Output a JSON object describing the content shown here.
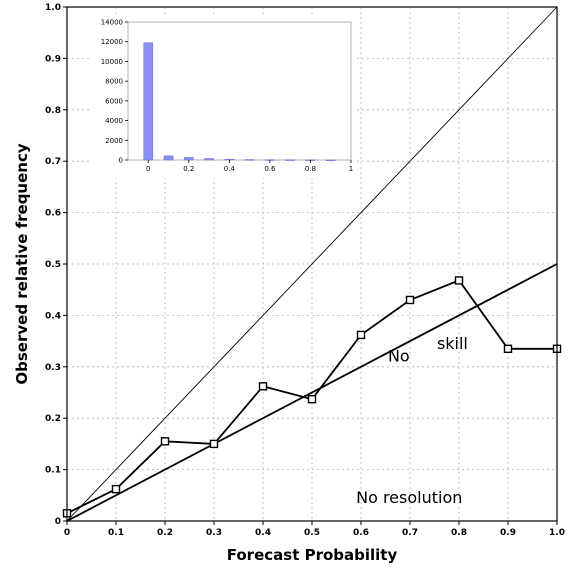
{
  "chart_data": [
    {
      "type": "line",
      "title": "",
      "xlabel": "Forecast Probability",
      "ylabel": "Observed relative frequency",
      "xlim": [
        0,
        1
      ],
      "ylim": [
        0,
        1
      ],
      "grid": true,
      "x_ticks": [
        "0",
        "0.1",
        "0.2",
        "0.3",
        "0.4",
        "0.5",
        "0.6",
        "0.7",
        "0.8",
        "0.9",
        "1.0"
      ],
      "y_ticks": [
        "0",
        "0.1",
        "0.2",
        "0.3",
        "0.4",
        "0.5",
        "0.6",
        "0.7",
        "0.8",
        "0.9",
        "1.0"
      ],
      "series": [
        {
          "x": [
            0,
            0.1,
            0.2,
            0.3,
            0.4,
            0.5,
            0.6,
            0.7,
            0.8,
            0.9,
            1.0
          ],
          "y": [
            0.015,
            0.062,
            0.155,
            0.15,
            0.262,
            0.237,
            0.362,
            0.43,
            0.468,
            0.335,
            0.335
          ]
        }
      ],
      "reference_lines": [
        {
          "x": [
            0,
            1
          ],
          "y": [
            0,
            1
          ]
        },
        {
          "x": [
            0,
            1
          ],
          "y": [
            0,
            0.5
          ]
        }
      ],
      "annotations": [
        {
          "text": "No",
          "x": 0.655,
          "y": 0.31
        },
        {
          "text": "skill",
          "x": 0.755,
          "y": 0.335
        },
        {
          "text": "No  resolution",
          "x": 0.59,
          "y": 0.035
        }
      ]
    },
    {
      "type": "bar",
      "title": "",
      "x": [
        0,
        0.1,
        0.2,
        0.3,
        0.4,
        0.5,
        0.6,
        0.7,
        0.8,
        0.9
      ],
      "values": [
        11900,
        420,
        260,
        150,
        80,
        50,
        35,
        25,
        15,
        5
      ],
      "xlim": [
        -0.1,
        1
      ],
      "ylim": [
        0,
        14000
      ],
      "x_ticks": [
        "0",
        "0.2",
        "0.4",
        "0.6",
        "0.8",
        "1"
      ],
      "y_ticks": [
        "0",
        "2000",
        "4000",
        "6000",
        "8000",
        "10000",
        "12000",
        "14000"
      ],
      "bar_color": "#8a8ff0"
    }
  ]
}
